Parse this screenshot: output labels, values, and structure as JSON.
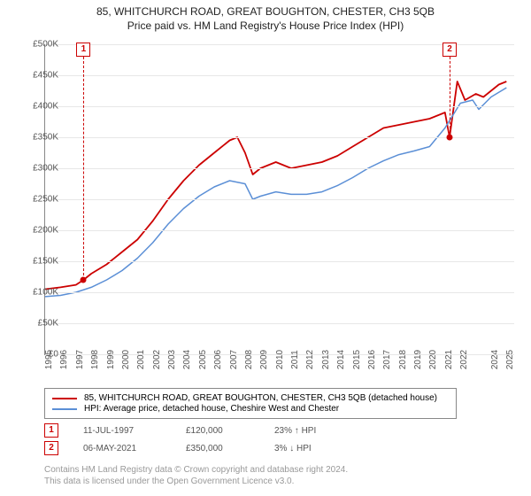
{
  "title_line1": "85, WHITCHURCH ROAD, GREAT BOUGHTON, CHESTER, CH3 5QB",
  "title_line2": "Price paid vs. HM Land Registry's House Price Index (HPI)",
  "chart": {
    "type": "line",
    "background_color": "#ffffff",
    "grid_color": "#e7e7e7",
    "axis_color": "#888888",
    "label_fontsize": 10,
    "xlim": [
      1995,
      2025.5
    ],
    "ylim": [
      0,
      500000
    ],
    "ytick_step": 50000,
    "y_ticks": [
      "£0",
      "£50K",
      "£100K",
      "£150K",
      "£200K",
      "£250K",
      "£300K",
      "£350K",
      "£400K",
      "£450K",
      "£500K"
    ],
    "x_ticks": [
      "1995",
      "1996",
      "1997",
      "1998",
      "1999",
      "2000",
      "2001",
      "2002",
      "2003",
      "2004",
      "2005",
      "2006",
      "2007",
      "2008",
      "2009",
      "2010",
      "2011",
      "2012",
      "2013",
      "2014",
      "2015",
      "2016",
      "2017",
      "2018",
      "2019",
      "2020",
      "2021",
      "2022",
      "2024",
      "2025"
    ],
    "series": [
      {
        "name": "85, WHITCHURCH ROAD, GREAT BOUGHTON, CHESTER, CH3 5QB (detached house)",
        "color": "#cc0000",
        "line_width": 1.8,
        "x": [
          1995,
          1996,
          1997,
          1997.5,
          1998,
          1999,
          2000,
          2001,
          2002,
          2003,
          2004,
          2005,
          2006,
          2007,
          2007.5,
          2008,
          2008.5,
          2009,
          2010,
          2011,
          2012,
          2013,
          2014,
          2015,
          2016,
          2017,
          2018,
          2019,
          2020,
          2021,
          2021.3,
          2021.8,
          2022.3,
          2023,
          2023.5,
          2024,
          2024.5,
          2025
        ],
        "y": [
          105000,
          108000,
          112000,
          120000,
          130000,
          145000,
          165000,
          185000,
          215000,
          250000,
          280000,
          305000,
          325000,
          345000,
          350000,
          325000,
          290000,
          300000,
          310000,
          300000,
          305000,
          310000,
          320000,
          335000,
          350000,
          365000,
          370000,
          375000,
          380000,
          390000,
          350000,
          440000,
          410000,
          420000,
          415000,
          425000,
          435000,
          440000
        ]
      },
      {
        "name": "HPI: Average price, detached house, Cheshire West and Chester",
        "color": "#5b8fd6",
        "line_width": 1.5,
        "x": [
          1995,
          1996,
          1997,
          1998,
          1999,
          2000,
          2001,
          2002,
          2003,
          2004,
          2005,
          2006,
          2007,
          2008,
          2008.5,
          2009,
          2010,
          2011,
          2012,
          2013,
          2014,
          2015,
          2016,
          2017,
          2018,
          2019,
          2020,
          2021,
          2022,
          2022.8,
          2023.2,
          2024,
          2025
        ],
        "y": [
          93000,
          95000,
          100000,
          108000,
          120000,
          135000,
          155000,
          180000,
          210000,
          235000,
          255000,
          270000,
          280000,
          275000,
          250000,
          255000,
          262000,
          258000,
          258000,
          262000,
          272000,
          285000,
          300000,
          312000,
          322000,
          328000,
          335000,
          365000,
          405000,
          410000,
          395000,
          415000,
          430000
        ]
      }
    ],
    "markers": [
      {
        "id": "1",
        "date": "11-JUL-1997",
        "x": 1997.5,
        "price_label": "£120,000",
        "y": 120000,
        "delta": "23% ↑ HPI"
      },
      {
        "id": "2",
        "date": "06-MAY-2021",
        "x": 2021.3,
        "price_label": "£350,000",
        "y": 350000,
        "delta": "3% ↓ HPI"
      }
    ]
  },
  "legend": {
    "border_color": "#888888",
    "rows": [
      {
        "color": "#cc0000",
        "label": "85, WHITCHURCH ROAD, GREAT BOUGHTON, CHESTER, CH3 5QB (detached house)"
      },
      {
        "color": "#5b8fd6",
        "label": "HPI: Average price, detached house, Cheshire West and Chester"
      }
    ]
  },
  "footer_line1": "Contains HM Land Registry data © Crown copyright and database right 2024.",
  "footer_line2": "This data is licensed under the Open Government Licence v3.0."
}
